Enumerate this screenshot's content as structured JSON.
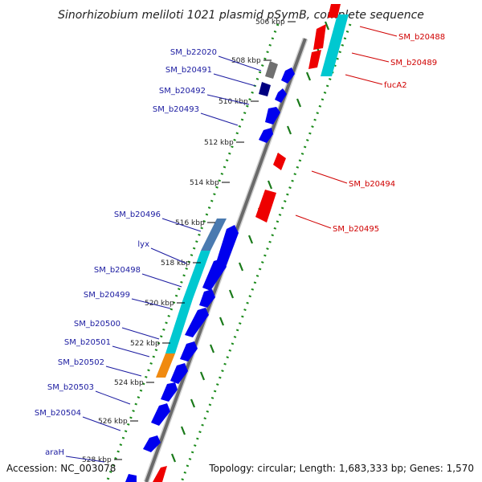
{
  "title": "Sinorhizobium meliloti 1021 plasmid pSymB, complete sequence",
  "accession": "Accession: NC_003078",
  "topology": "Topology: circular; Length: 1,683,333 bp; Genes: 1,570",
  "colors": {
    "forward": "#0000ee",
    "reverse": "#ee0000",
    "cyan": "#00c8d0",
    "steel": "#4a7ab0",
    "orange": "#f08a10",
    "gray": "#707070",
    "navy": "#000080",
    "skew_dot": "#1a8a1a",
    "skew_dash": "#1a7a1a"
  },
  "scale_labels": [
    {
      "text": "506 kbp"
    },
    {
      "text": "508 kbp"
    },
    {
      "text": "510 kbp"
    },
    {
      "text": "512 kbp"
    },
    {
      "text": "514 kbp"
    },
    {
      "text": "516 kbp"
    },
    {
      "text": "518 kbp"
    },
    {
      "text": "520 kbp"
    },
    {
      "text": "522 kbp"
    },
    {
      "text": "524 kbp"
    },
    {
      "text": "526 kbp"
    },
    {
      "text": "528 kbp"
    }
  ],
  "forward_labels": [
    {
      "text": "SM_b22020"
    },
    {
      "text": "SM_b20491"
    },
    {
      "text": "SM_b20492"
    },
    {
      "text": "SM_b20493"
    },
    {
      "text": "SM_b20496"
    },
    {
      "text": "lyx"
    },
    {
      "text": "SM_b20498"
    },
    {
      "text": "SM_b20499"
    },
    {
      "text": "SM_b20500"
    },
    {
      "text": "SM_b20501"
    },
    {
      "text": "SM_b20502"
    },
    {
      "text": "SM_b20503"
    },
    {
      "text": "SM_b20504"
    },
    {
      "text": "araH"
    }
  ],
  "reverse_labels": [
    {
      "text": "SM_b20488"
    },
    {
      "text": "SM_b20489"
    },
    {
      "text": "fucA2"
    },
    {
      "text": "SM_b20494"
    },
    {
      "text": "SM_b20495"
    }
  ]
}
